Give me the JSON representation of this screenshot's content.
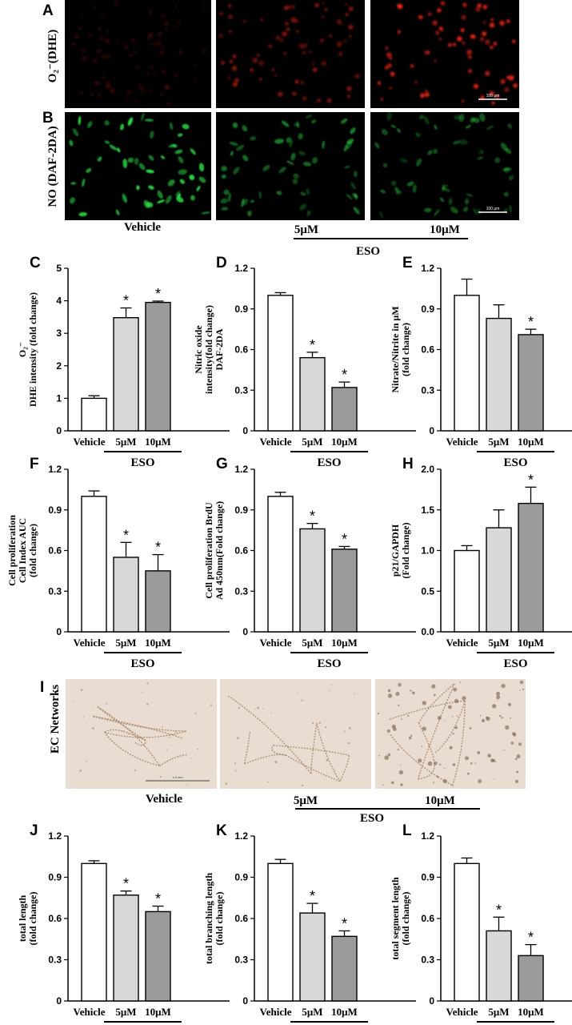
{
  "colors": {
    "vehicle": "#ffffff",
    "eso_5": "#d8d8d8",
    "eso_10": "#9b9b9b",
    "dhe_red": "#ff2a1a",
    "daf_green": "#2fe04a",
    "network_bg": "#e9ddd1",
    "network_cell": "#a08060"
  },
  "image_panels": {
    "A": {
      "letter": "A",
      "row_label": "O₂⁻(DHE)",
      "fluor": "red",
      "scale_bar": "100 μm"
    },
    "B": {
      "letter": "B",
      "row_label": "NO (DAF-2DA)",
      "fluor": "green",
      "scale_bar": "100 μm"
    },
    "I": {
      "letter": "I",
      "row_label": "EC Networks",
      "scale_bar": "1.0 mm"
    },
    "intensity": {
      "A": [
        0.18,
        0.55,
        0.95
      ],
      "B": [
        0.95,
        0.55,
        0.45
      ],
      "I": [
        0.25,
        0.35,
        0.6
      ]
    },
    "col_labels": [
      "Vehicle",
      "5μM",
      "10μM"
    ],
    "group_label": "ESO"
  },
  "chart_data": [
    {
      "id": "C",
      "letter": "C",
      "type": "bar",
      "categories": [
        "Vehicle",
        "5μM",
        "10μM"
      ],
      "values": [
        1.0,
        3.48,
        3.95
      ],
      "errors": [
        0.08,
        0.3,
        0.04
      ],
      "significant": [
        false,
        true,
        true
      ],
      "ylim": [
        0,
        5
      ],
      "yticks": [
        0,
        1,
        2,
        3,
        4,
        5
      ],
      "ylabel": [
        "O₂⁻",
        "DHE intensity (fold change)"
      ],
      "group_label": "ESO"
    },
    {
      "id": "D",
      "letter": "D",
      "type": "bar",
      "categories": [
        "Vehicle",
        "5μM",
        "10μM"
      ],
      "values": [
        1.0,
        0.54,
        0.32
      ],
      "errors": [
        0.02,
        0.04,
        0.04
      ],
      "significant": [
        false,
        true,
        true
      ],
      "ylim": [
        0,
        1.2
      ],
      "yticks": [
        0,
        0.3,
        0.6,
        0.9,
        1.2
      ],
      "ylabel": [
        "Nitric oxide",
        "intensity(fold change)",
        "DAF-2DA"
      ],
      "group_label": "ESO"
    },
    {
      "id": "E",
      "letter": "E",
      "type": "bar",
      "categories": [
        "Vehicle",
        "5μM",
        "10μM"
      ],
      "values": [
        1.0,
        0.83,
        0.71
      ],
      "errors": [
        0.12,
        0.1,
        0.04
      ],
      "significant": [
        false,
        false,
        true
      ],
      "ylim": [
        0,
        1.2
      ],
      "yticks": [
        0,
        0.3,
        0.6,
        0.9,
        1.2
      ],
      "ylabel": [
        "Nitrate/Nitrite in μM",
        "(fold change)"
      ],
      "group_label": "ESO"
    },
    {
      "id": "F",
      "letter": "F",
      "type": "bar",
      "categories": [
        "Vehicle",
        "5μM",
        "10μM"
      ],
      "values": [
        1.0,
        0.55,
        0.45
      ],
      "errors": [
        0.04,
        0.11,
        0.12
      ],
      "significant": [
        false,
        true,
        true
      ],
      "ylim": [
        0,
        1.2
      ],
      "yticks": [
        0,
        0.3,
        0.6,
        0.9,
        1.2
      ],
      "ylabel": [
        "Cell proliferation",
        "Cell Index AUC",
        "(fold change)"
      ],
      "group_label": "ESO"
    },
    {
      "id": "G",
      "letter": "G",
      "type": "bar",
      "categories": [
        "Vehicle",
        "5μM",
        "10μM"
      ],
      "values": [
        1.0,
        0.76,
        0.61
      ],
      "errors": [
        0.03,
        0.04,
        0.02
      ],
      "significant": [
        false,
        true,
        true
      ],
      "ylim": [
        0,
        1.2
      ],
      "yticks": [
        0,
        0.3,
        0.6,
        0.9,
        1.2
      ],
      "ylabel": [
        "Cell proliferation BrdU",
        "Ad 450nm(Fold change)"
      ],
      "group_label": "ESO"
    },
    {
      "id": "H",
      "letter": "H",
      "type": "bar",
      "categories": [
        "Vehicle",
        "5μM",
        "10μM"
      ],
      "values": [
        1.0,
        1.28,
        1.58
      ],
      "errors": [
        0.06,
        0.22,
        0.2
      ],
      "significant": [
        false,
        false,
        true
      ],
      "ylim": [
        0,
        2.0
      ],
      "yticks": [
        0,
        0.5,
        1.0,
        1.5,
        2.0
      ],
      "ylabel": [
        "p21/GAPDH",
        "(Fold change)"
      ],
      "group_label": "ESO"
    },
    {
      "id": "J",
      "letter": "J",
      "type": "bar",
      "categories": [
        "Vehicle",
        "5μM",
        "10μM"
      ],
      "values": [
        1.0,
        0.77,
        0.65
      ],
      "errors": [
        0.02,
        0.03,
        0.04
      ],
      "significant": [
        false,
        true,
        true
      ],
      "ylim": [
        0,
        1.2
      ],
      "yticks": [
        0,
        0.3,
        0.6,
        0.9,
        1.2
      ],
      "ylabel": [
        "total length",
        "(fold change)"
      ],
      "group_label": "ESO"
    },
    {
      "id": "K",
      "letter": "K",
      "type": "bar",
      "categories": [
        "Vehicle",
        "5μM",
        "10μM"
      ],
      "values": [
        1.0,
        0.64,
        0.47
      ],
      "errors": [
        0.03,
        0.07,
        0.04
      ],
      "significant": [
        false,
        true,
        true
      ],
      "ylim": [
        0,
        1.2
      ],
      "yticks": [
        0,
        0.3,
        0.6,
        0.9,
        1.2
      ],
      "ylabel": [
        "total branching length",
        "(fold change)"
      ],
      "group_label": "ESO"
    },
    {
      "id": "L",
      "letter": "L",
      "type": "bar",
      "categories": [
        "Vehicle",
        "5μM",
        "10μM"
      ],
      "values": [
        1.0,
        0.51,
        0.33
      ],
      "errors": [
        0.04,
        0.1,
        0.08
      ],
      "significant": [
        false,
        true,
        true
      ],
      "ylim": [
        0,
        1.2
      ],
      "yticks": [
        0,
        0.3,
        0.6,
        0.9,
        1.2
      ],
      "ylabel": [
        "total segment length",
        "(fold change)"
      ],
      "group_label": "ESO"
    }
  ]
}
